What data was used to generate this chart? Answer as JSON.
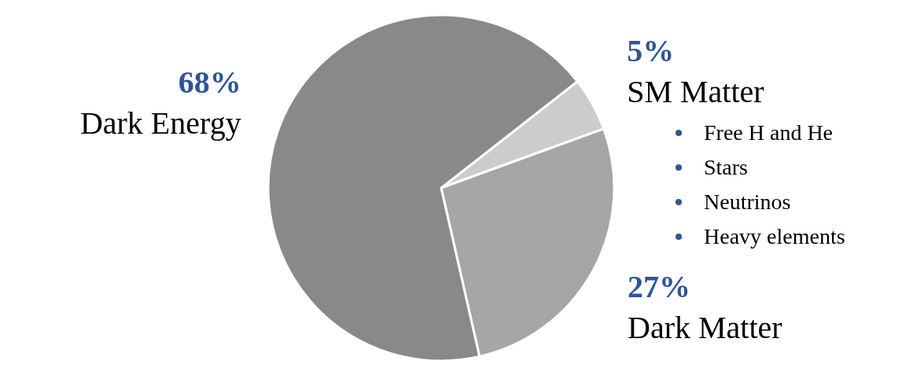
{
  "chart_data": {
    "type": "pie",
    "categories": [
      "SM Matter",
      "Dark Matter",
      "Dark Energy"
    ],
    "values": [
      5,
      27,
      68
    ],
    "colors": [
      "#cccccc",
      "#a6a6a6",
      "#898989"
    ],
    "value_labels": [
      "5%",
      "27%",
      "68%"
    ],
    "annotations": [
      "Free H and He",
      "Stars",
      "Neutrinos",
      "Heavy elements"
    ]
  }
}
